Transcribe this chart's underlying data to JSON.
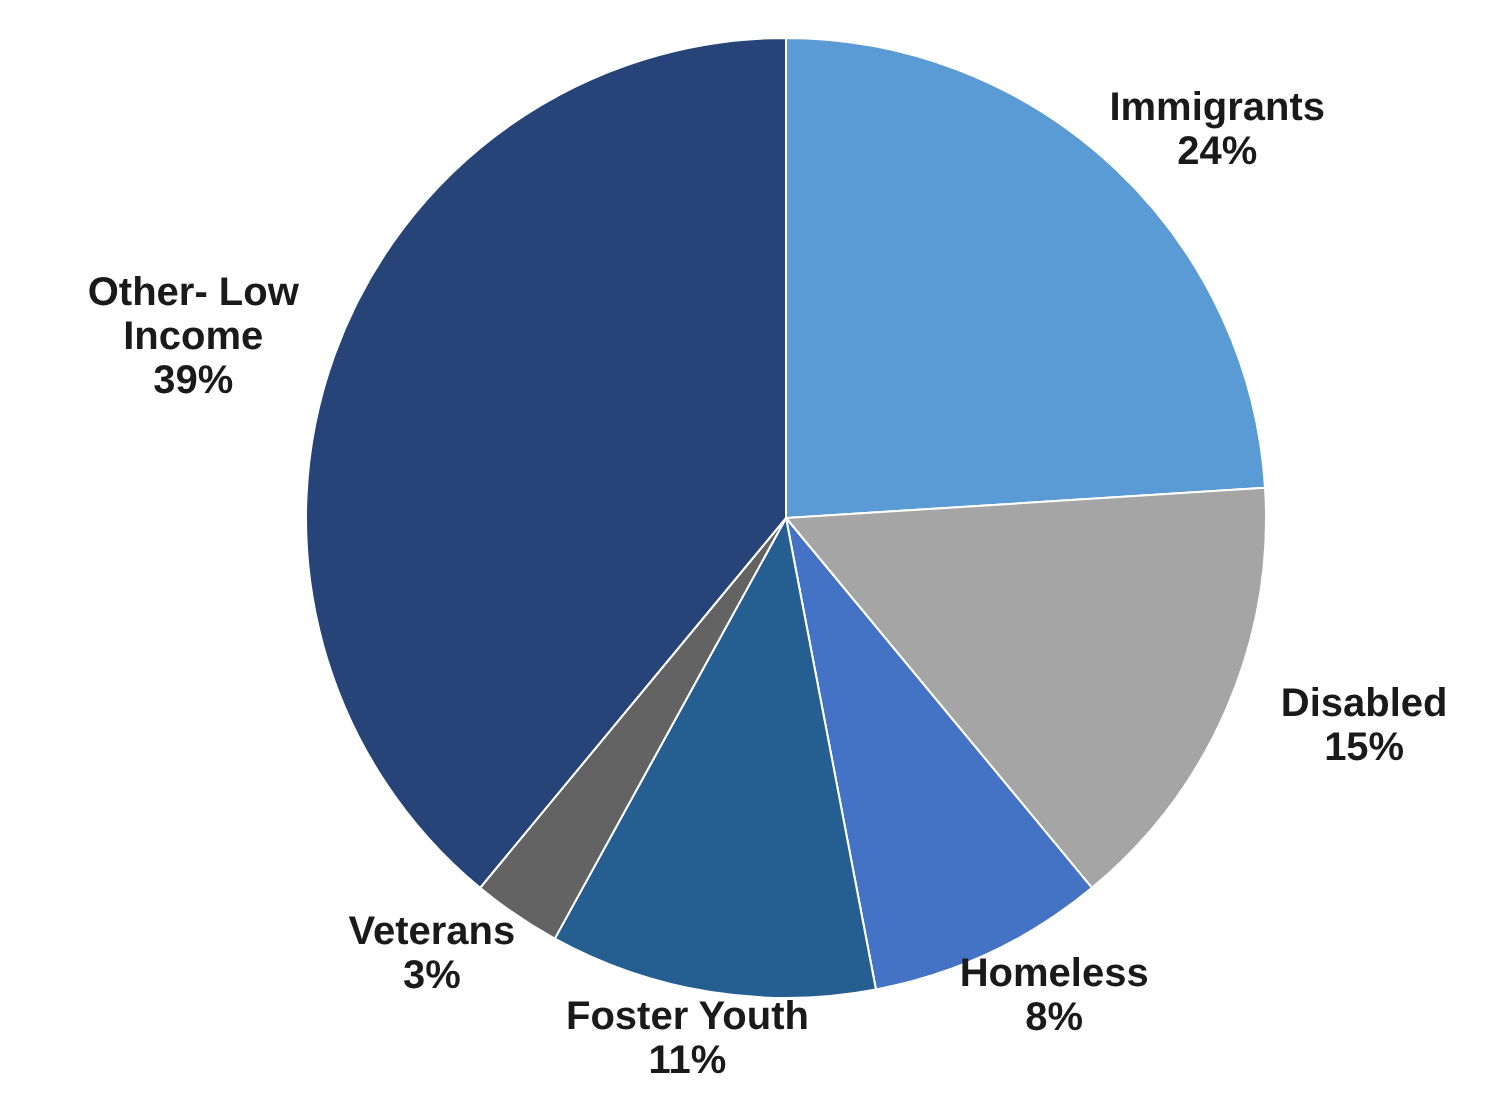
{
  "chart_data": {
    "type": "pie",
    "categories": [
      "Immigrants",
      "Disabled",
      "Homeless",
      "Foster Youth",
      "Veterans",
      "Other- Low Income"
    ],
    "values": [
      24,
      15,
      8,
      11,
      3,
      39
    ],
    "colors": [
      "#5b9bd5",
      "#a5a5a5",
      "#4472c4",
      "#255e91",
      "#636363",
      "#264478"
    ],
    "value_labels": [
      "24%",
      "15%",
      "8%",
      "11%",
      "3%",
      "39%"
    ]
  }
}
